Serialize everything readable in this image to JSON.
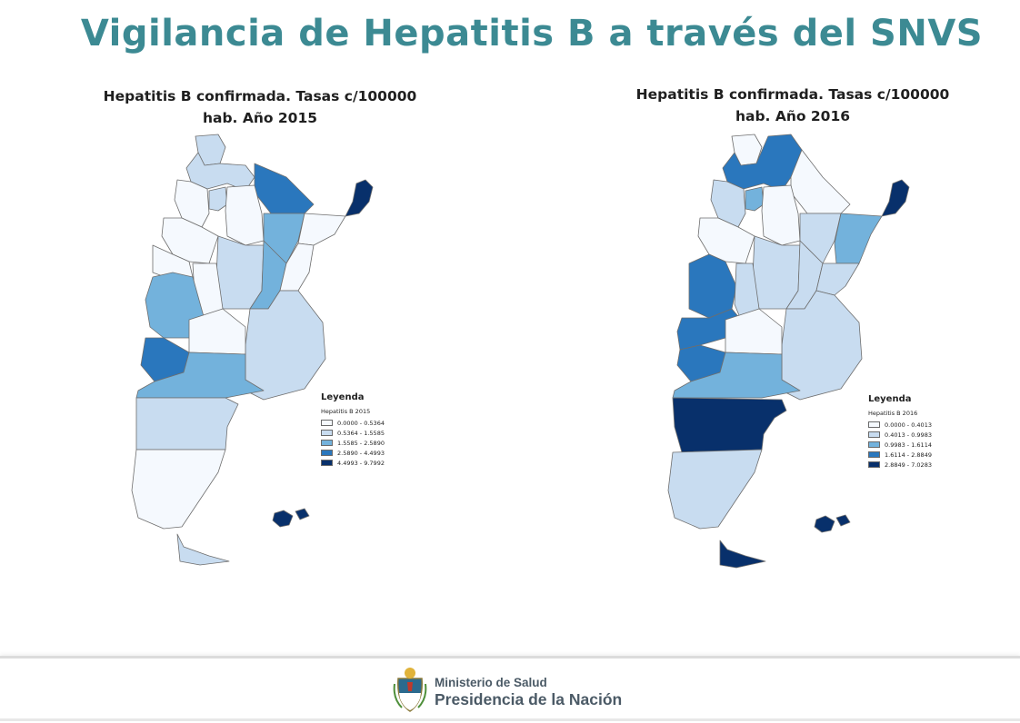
{
  "header": {
    "title": "Vigilancia de Hepatitis B a través del SNVS"
  },
  "maps": [
    {
      "title_line1": "Hepatitis B confirmada. Tasas c/100000",
      "title_line2": "hab. Año 2015",
      "legend": {
        "title": "Leyenda",
        "subtitle": "Hepatitis B 2015",
        "classes": [
          "0.0000 - 0.5364",
          "0.5364 - 1.5585",
          "1.5585 - 2.5890",
          "2.5890 - 4.4993",
          "4.4993 - 9.7992"
        ]
      }
    },
    {
      "title_line1": "Hepatitis B confirmada. Tasas c/100000",
      "title_line2": "hab. Año 2016",
      "legend": {
        "title": "Leyenda",
        "subtitle": "Hepatitis B 2016",
        "classes": [
          "0.0000 - 0.4013",
          "0.4013 - 0.9983",
          "0.9983 - 1.6114",
          "1.6114 - 2.8849",
          "2.8849 - 7.0283"
        ]
      }
    }
  ],
  "palette": [
    "#f5f9fe",
    "#c8dcf0",
    "#73b2dc",
    "#2a77bd",
    "#08306b"
  ],
  "footer": {
    "ministry_line1": "Ministerio de Salud",
    "ministry_line2": "Presidencia de la Nación"
  }
}
